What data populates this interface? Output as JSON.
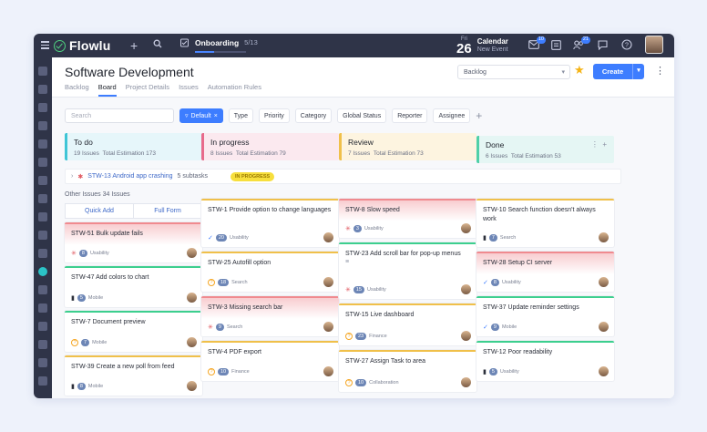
{
  "topbar": {
    "app_name": "Flowlu",
    "onboarding": {
      "label": "Onboarding",
      "count": "5/13",
      "progress": 0.38
    },
    "calendar": {
      "dow": "Fri",
      "day": "26",
      "title": "Calendar",
      "subtitle": "New Event"
    },
    "badges": {
      "mail": "10",
      "people": "21"
    }
  },
  "header": {
    "title": "Software Development",
    "tabs": [
      "Backlog",
      "Board",
      "Project Details",
      "Issues",
      "Automation Rules"
    ],
    "active_tab": "Board",
    "sprint_select": "Backlog",
    "create_label": "Create"
  },
  "filters": {
    "search_placeholder": "Search",
    "default_label": "Default",
    "chips": [
      "Type",
      "Priority",
      "Category",
      "Global Status",
      "Reporter",
      "Assignee"
    ]
  },
  "columns": [
    {
      "name": "To do",
      "issues": "19 Issues",
      "estimation": "Total Estimation 173",
      "color": "#3fc5d6",
      "bg": "#e6f6fa"
    },
    {
      "name": "In progress",
      "issues": "8 Issues",
      "estimation": "Total Estimation 79",
      "color": "#e86a8b",
      "bg": "#fbe9ef"
    },
    {
      "name": "Review",
      "issues": "7 Issues",
      "estimation": "Total Estimation 73",
      "color": "#f0c04a",
      "bg": "#fdf4e0"
    },
    {
      "name": "Done",
      "issues": "6 Issues",
      "estimation": "Total Estimation 53",
      "color": "#4fd0a8",
      "bg": "#e5f6f4"
    }
  ],
  "epic": {
    "key": "STW-13 Android app crashing",
    "subtasks": "5 subtasks",
    "status": "IN PROGRESS"
  },
  "other_issues": {
    "label": "Other Issues",
    "count": "34 Issues"
  },
  "quick_add": {
    "quick": "Quick Add",
    "full": "Full Form"
  },
  "cards": {
    "todo": [
      {
        "title": "STW-51 Bulk update fails",
        "est": "8",
        "tag": "Usability",
        "type": "bug"
      },
      {
        "title": "STW-47 Add colors to chart",
        "est": "5",
        "tag": "Mobile",
        "type": "story"
      },
      {
        "title": "STW-7 Document preview",
        "est": "7",
        "tag": "Mobile",
        "type": "question"
      },
      {
        "title": "STW-39 Create a new poll from feed",
        "est": "8",
        "tag": "Mobile",
        "type": "story"
      }
    ],
    "progress": [
      {
        "title": "STW-1 Provide option to change languages",
        "est": "20",
        "tag": "Usability",
        "type": "check"
      },
      {
        "title": "STW-25 Autofill option",
        "est": "18",
        "tag": "Search",
        "type": "question"
      },
      {
        "title": "STW-3 Missing search bar",
        "est": "9",
        "tag": "Search",
        "type": "bug"
      },
      {
        "title": "STW-4 PDF export",
        "est": "10",
        "tag": "Finance",
        "type": "question"
      }
    ],
    "review": [
      {
        "title": "STW-8 Slow speed",
        "est": "3",
        "tag": "Usability",
        "type": "bug"
      },
      {
        "title": "STW-23 Add scroll bar for pop-up menus",
        "est": "15",
        "tag": "Usability",
        "type": "bug"
      },
      {
        "title": "STW-15 Live dashboard",
        "est": "23",
        "tag": "Finance",
        "type": "question"
      },
      {
        "title": "STW-27 Assign Task to area",
        "est": "10",
        "tag": "Collaboration",
        "type": "question"
      }
    ],
    "done": [
      {
        "title": "STW-10 Search function doesn't always work",
        "est": "7",
        "tag": "Search",
        "type": "story"
      },
      {
        "title": "STW-28 Setup CI server",
        "est": "8",
        "tag": "Usability",
        "type": "check"
      },
      {
        "title": "STW-37 Update reminder settings",
        "est": "9",
        "tag": "Mobile",
        "type": "check"
      },
      {
        "title": "STW-12 Poor readability",
        "est": "5",
        "tag": "Usability",
        "type": "story"
      }
    ]
  }
}
